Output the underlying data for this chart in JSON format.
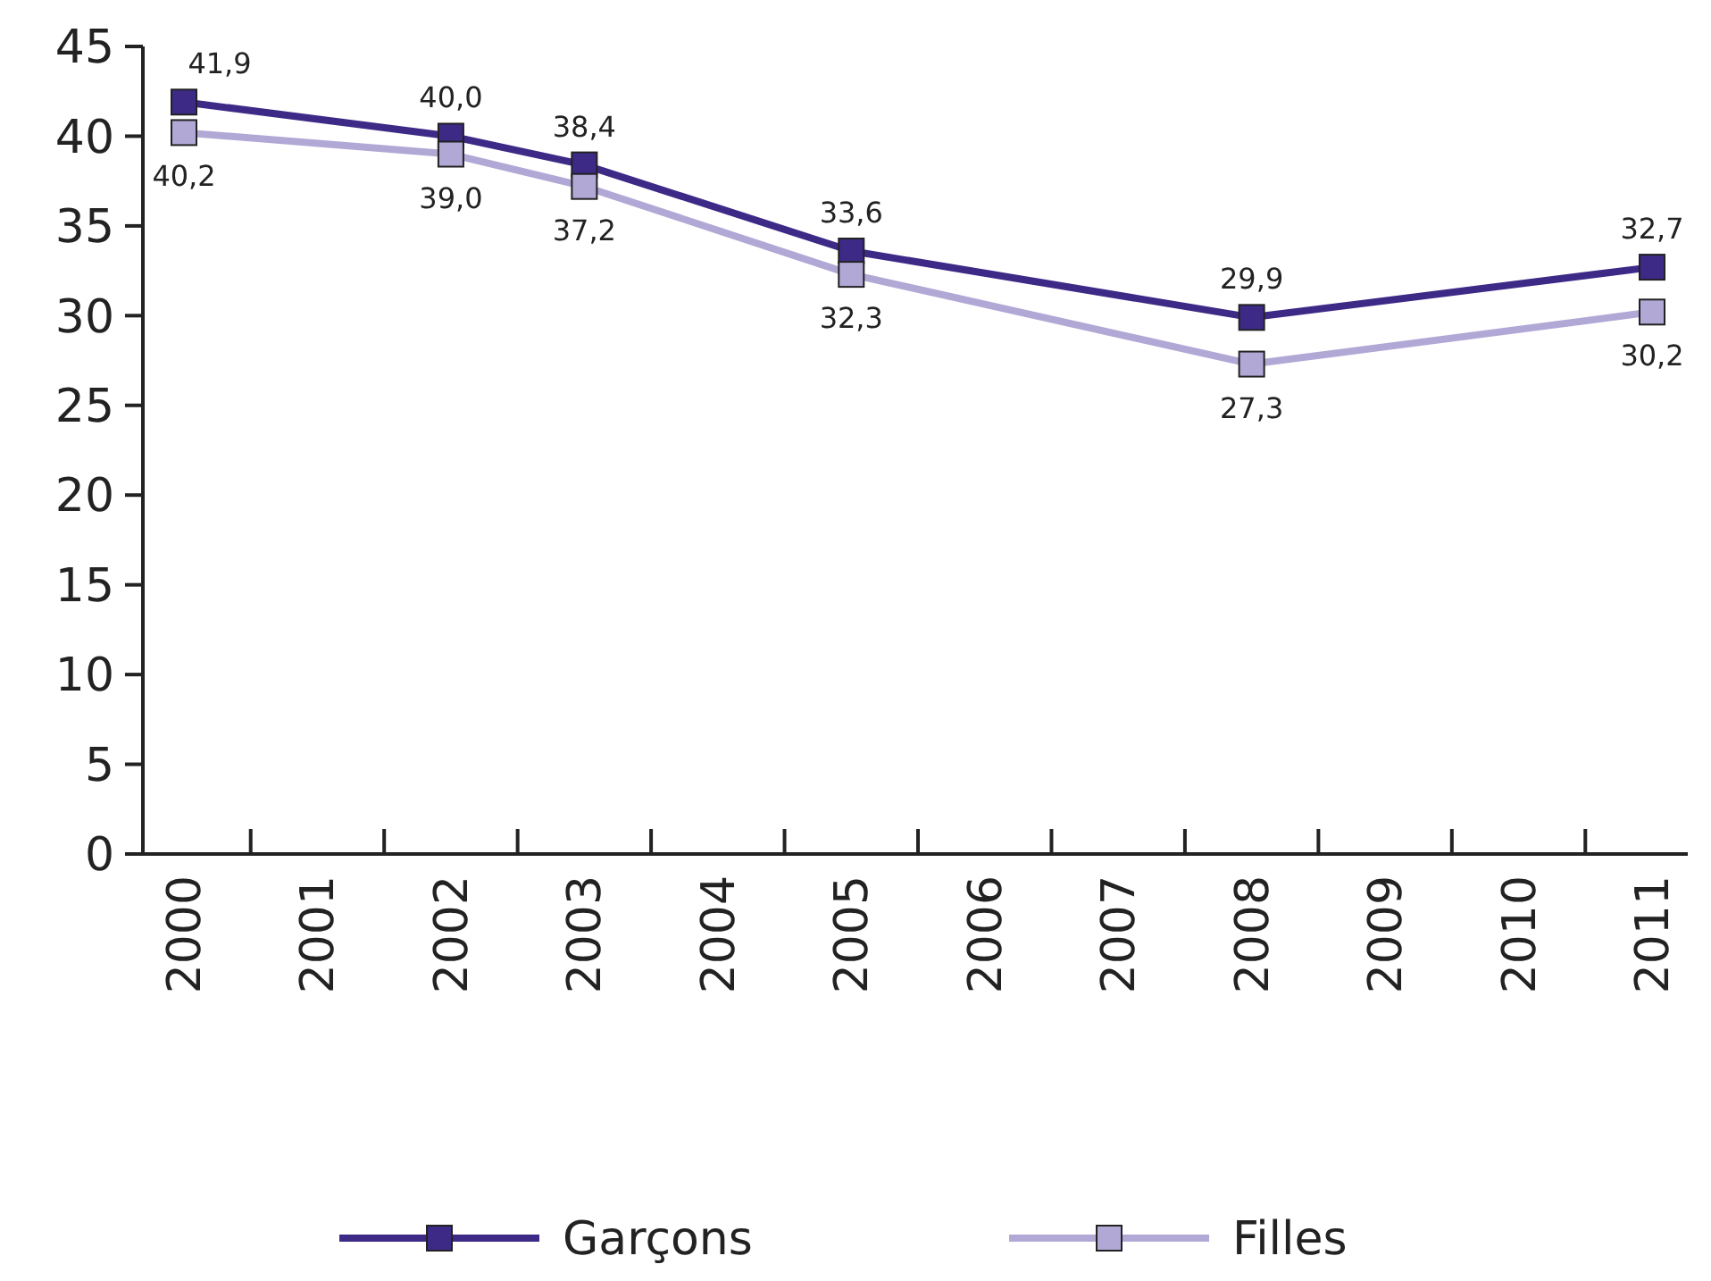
{
  "chart_data": {
    "type": "line",
    "categories": [
      "2000",
      "2001",
      "2002",
      "2003",
      "2004",
      "2005",
      "2006",
      "2007",
      "2008",
      "2009",
      "2010",
      "2011"
    ],
    "ylim": [
      0,
      45
    ],
    "yticks": [
      0,
      5,
      10,
      15,
      20,
      25,
      30,
      35,
      40,
      45
    ],
    "grid": false,
    "legend": "bottom",
    "marker": "square",
    "line_style": "solid",
    "series": [
      {
        "name": "Garçons",
        "color": "#3d2a87",
        "values": [
          41.9,
          null,
          40.0,
          38.4,
          null,
          33.6,
          null,
          null,
          29.9,
          null,
          null,
          32.7
        ],
        "value_labels": [
          "41,9",
          null,
          "40,0",
          "38,4",
          null,
          "33,6",
          null,
          null,
          "29,9",
          null,
          null,
          "32,7"
        ]
      },
      {
        "name": "Filles",
        "color": "#b1a8d6",
        "values": [
          40.2,
          null,
          39.0,
          37.2,
          null,
          32.3,
          null,
          null,
          27.3,
          null,
          null,
          30.2
        ],
        "value_labels": [
          "40,2",
          null,
          "39,0",
          "37,2",
          null,
          "32,3",
          null,
          null,
          "27,3",
          null,
          null,
          "30,2"
        ]
      }
    ]
  }
}
